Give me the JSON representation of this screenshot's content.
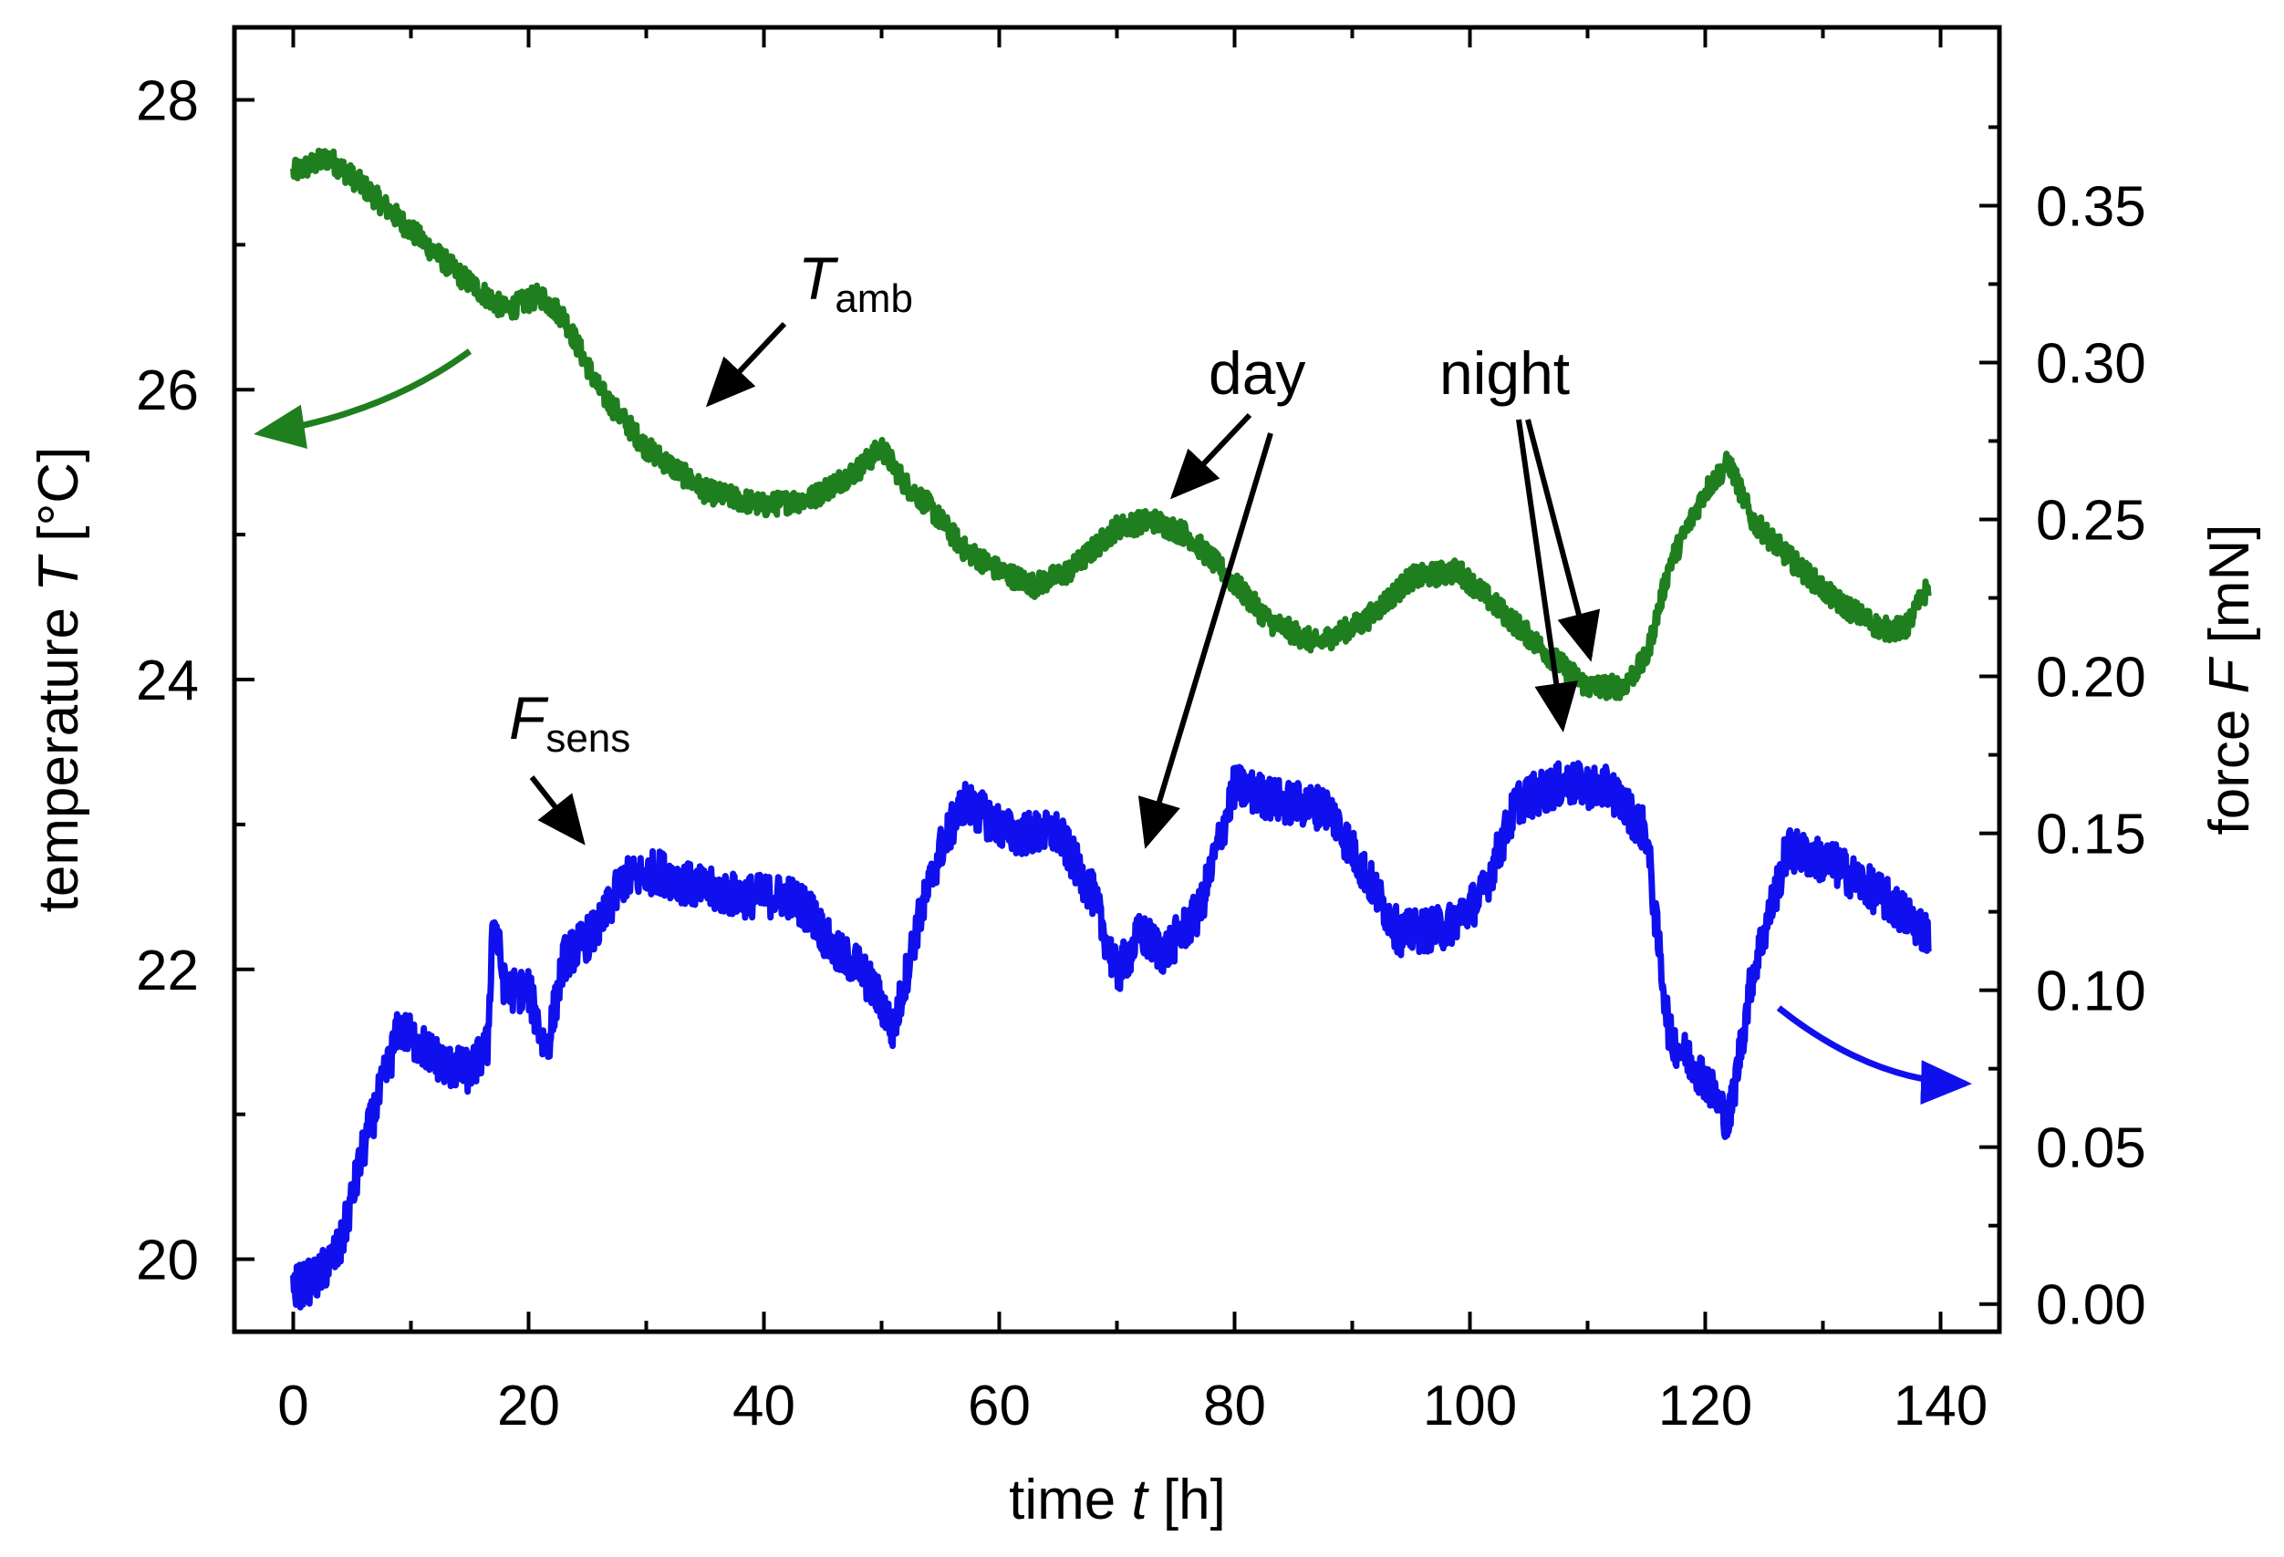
{
  "chart_data": {
    "type": "line",
    "xlabel": {
      "prefix": "time ",
      "var": "t",
      "suffix": " [h]"
    },
    "ylabel_left": {
      "prefix": "temperature ",
      "var": "T",
      "suffix": " [°C]"
    },
    "ylabel_right": {
      "prefix": "force ",
      "var": "F",
      "suffix": " [mN]"
    },
    "xlim": [
      -5,
      145
    ],
    "ylim_left": [
      19.5,
      28.5
    ],
    "ylim_right": [
      -0.0088,
      0.4068
    ],
    "x_ticks": [
      "0",
      "20",
      "40",
      "60",
      "80",
      "100",
      "120",
      "140"
    ],
    "y_left_ticks": [
      "20",
      "22",
      "24",
      "26",
      "28"
    ],
    "y_right_ticks": [
      "0.00",
      "0.05",
      "0.10",
      "0.15",
      "0.20",
      "0.25",
      "0.30",
      "0.35"
    ],
    "series": [
      {
        "name": "T_amb",
        "axis": "left",
        "color": "#1f7f1f",
        "noise_amplitude": 0.08,
        "points": [
          [
            0,
            27.5
          ],
          [
            3,
            27.6
          ],
          [
            6,
            27.4
          ],
          [
            10,
            27.1
          ],
          [
            14,
            26.8
          ],
          [
            18,
            26.55
          ],
          [
            21,
            26.65
          ],
          [
            23,
            26.5
          ],
          [
            26,
            26.0
          ],
          [
            30,
            25.6
          ],
          [
            35,
            25.3
          ],
          [
            40,
            25.2
          ],
          [
            44,
            25.25
          ],
          [
            48,
            25.45
          ],
          [
            50,
            25.6
          ],
          [
            52,
            25.35
          ],
          [
            54,
            25.2
          ],
          [
            57,
            24.9
          ],
          [
            60,
            24.75
          ],
          [
            63,
            24.65
          ],
          [
            66,
            24.75
          ],
          [
            70,
            25.05
          ],
          [
            73,
            25.1
          ],
          [
            76,
            25.0
          ],
          [
            79,
            24.75
          ],
          [
            83,
            24.4
          ],
          [
            87,
            24.25
          ],
          [
            91,
            24.4
          ],
          [
            95,
            24.7
          ],
          [
            99,
            24.75
          ],
          [
            103,
            24.45
          ],
          [
            107,
            24.15
          ],
          [
            110,
            23.95
          ],
          [
            113,
            23.95
          ],
          [
            115,
            24.15
          ],
          [
            117,
            24.8
          ],
          [
            120,
            25.3
          ],
          [
            122,
            25.5
          ],
          [
            124,
            25.1
          ],
          [
            127,
            24.85
          ],
          [
            131,
            24.55
          ],
          [
            135,
            24.35
          ],
          [
            137,
            24.35
          ],
          [
            139,
            24.65
          ]
        ]
      },
      {
        "name": "F_sens",
        "axis": "right",
        "color": "#1010ee",
        "noise_amplitude": 0.007,
        "points": [
          [
            0,
            0.005
          ],
          [
            2,
            0.008
          ],
          [
            4,
            0.018
          ],
          [
            6,
            0.05
          ],
          [
            8,
            0.075
          ],
          [
            9,
            0.088
          ],
          [
            11,
            0.082
          ],
          [
            13,
            0.076
          ],
          [
            15,
            0.074
          ],
          [
            16.5,
            0.082
          ],
          [
            17,
            0.125
          ],
          [
            18,
            0.1
          ],
          [
            20,
            0.1
          ],
          [
            21.5,
            0.08
          ],
          [
            23,
            0.11
          ],
          [
            26,
            0.12
          ],
          [
            28,
            0.135
          ],
          [
            31,
            0.138
          ],
          [
            34,
            0.133
          ],
          [
            38,
            0.13
          ],
          [
            42,
            0.13
          ],
          [
            44,
            0.125
          ],
          [
            46,
            0.112
          ],
          [
            48,
            0.108
          ],
          [
            50,
            0.096
          ],
          [
            51,
            0.087
          ],
          [
            53,
            0.12
          ],
          [
            55,
            0.145
          ],
          [
            57,
            0.16
          ],
          [
            61,
            0.15
          ],
          [
            65,
            0.15
          ],
          [
            68,
            0.13
          ],
          [
            70,
            0.105
          ],
          [
            72,
            0.118
          ],
          [
            74,
            0.112
          ],
          [
            77,
            0.125
          ],
          [
            80,
            0.165
          ],
          [
            84,
            0.16
          ],
          [
            88,
            0.158
          ],
          [
            91,
            0.138
          ],
          [
            94,
            0.118
          ],
          [
            98,
            0.12
          ],
          [
            101,
            0.13
          ],
          [
            104,
            0.16
          ],
          [
            108,
            0.166
          ],
          [
            112,
            0.164
          ],
          [
            115,
            0.15
          ],
          [
            116,
            0.115
          ],
          [
            117,
            0.085
          ],
          [
            120,
            0.072
          ],
          [
            122,
            0.058
          ],
          [
            124,
            0.105
          ],
          [
            127,
            0.145
          ],
          [
            131,
            0.14
          ],
          [
            135,
            0.13
          ],
          [
            139,
            0.118
          ]
        ]
      }
    ],
    "annotations": [
      {
        "id": "tamb-label",
        "main": "T",
        "sub": "amb"
      },
      {
        "id": "fsens-label",
        "main": "F",
        "sub": "sens"
      },
      {
        "id": "day-label",
        "text": "day"
      },
      {
        "id": "night-label",
        "text": "night"
      }
    ]
  }
}
